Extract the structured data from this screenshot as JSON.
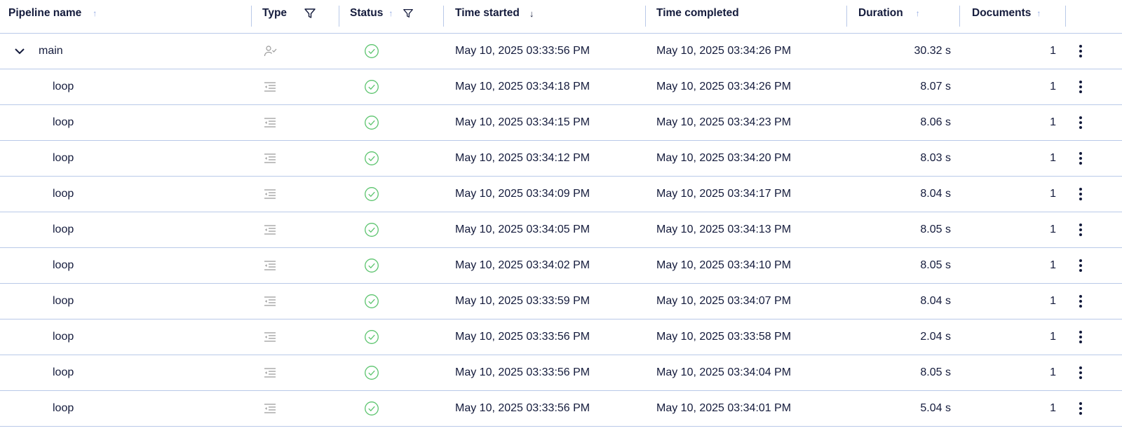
{
  "columns": {
    "name": "Pipeline name",
    "type": "Type",
    "status": "Status",
    "started": "Time started",
    "completed": "Time completed",
    "duration": "Duration",
    "documents": "Documents"
  },
  "colors": {
    "success": "#5cc46e",
    "divider": "#b9c9e8",
    "sort_icon": "#8ea6e0",
    "text": "#141b3c",
    "type_icon": "#9a9a9a"
  },
  "rows": [
    {
      "name": "main",
      "expanded": true,
      "type_icon": "user-check-icon",
      "status_icon": "check-circle-icon",
      "started": "May 10, 2025 03:33:56 PM",
      "completed": "May 10, 2025 03:34:26 PM",
      "duration": "30.32 s",
      "documents": "1"
    },
    {
      "name": "loop",
      "type_icon": "indent-list-icon",
      "status_icon": "check-circle-icon",
      "started": "May 10, 2025 03:34:18 PM",
      "completed": "May 10, 2025 03:34:26 PM",
      "duration": "8.07 s",
      "documents": "1"
    },
    {
      "name": "loop",
      "type_icon": "indent-list-icon",
      "status_icon": "check-circle-icon",
      "started": "May 10, 2025 03:34:15 PM",
      "completed": "May 10, 2025 03:34:23 PM",
      "duration": "8.06 s",
      "documents": "1"
    },
    {
      "name": "loop",
      "type_icon": "indent-list-icon",
      "status_icon": "check-circle-icon",
      "started": "May 10, 2025 03:34:12 PM",
      "completed": "May 10, 2025 03:34:20 PM",
      "duration": "8.03 s",
      "documents": "1"
    },
    {
      "name": "loop",
      "type_icon": "indent-list-icon",
      "status_icon": "check-circle-icon",
      "started": "May 10, 2025 03:34:09 PM",
      "completed": "May 10, 2025 03:34:17 PM",
      "duration": "8.04 s",
      "documents": "1"
    },
    {
      "name": "loop",
      "type_icon": "indent-list-icon",
      "status_icon": "check-circle-icon",
      "started": "May 10, 2025 03:34:05 PM",
      "completed": "May 10, 2025 03:34:13 PM",
      "duration": "8.05 s",
      "documents": "1"
    },
    {
      "name": "loop",
      "type_icon": "indent-list-icon",
      "status_icon": "check-circle-icon",
      "started": "May 10, 2025 03:34:02 PM",
      "completed": "May 10, 2025 03:34:10 PM",
      "duration": "8.05 s",
      "documents": "1"
    },
    {
      "name": "loop",
      "type_icon": "indent-list-icon",
      "status_icon": "check-circle-icon",
      "started": "May 10, 2025 03:33:59 PM",
      "completed": "May 10, 2025 03:34:07 PM",
      "duration": "8.04 s",
      "documents": "1"
    },
    {
      "name": "loop",
      "type_icon": "indent-list-icon",
      "status_icon": "check-circle-icon",
      "started": "May 10, 2025 03:33:56 PM",
      "completed": "May 10, 2025 03:33:58 PM",
      "duration": "2.04 s",
      "documents": "1"
    },
    {
      "name": "loop",
      "type_icon": "indent-list-icon",
      "status_icon": "check-circle-icon",
      "started": "May 10, 2025 03:33:56 PM",
      "completed": "May 10, 2025 03:34:04 PM",
      "duration": "8.05 s",
      "documents": "1"
    },
    {
      "name": "loop",
      "type_icon": "indent-list-icon",
      "status_icon": "check-circle-icon",
      "started": "May 10, 2025 03:33:56 PM",
      "completed": "May 10, 2025 03:34:01 PM",
      "duration": "5.04 s",
      "documents": "1"
    }
  ]
}
